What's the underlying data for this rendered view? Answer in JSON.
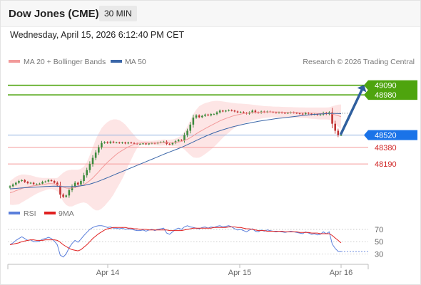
{
  "header": {
    "title": "Dow Jones (CME)",
    "interval": "30 MIN",
    "datetime": "Wednesday, April 15, 2026 6:12:40 PM CET"
  },
  "legend": {
    "bollinger_label": "MA 20 + Bollinger Bands",
    "ma50_label": "MA 50",
    "credit": "Research © 2026 Trading Central",
    "rsi_label": "RSI",
    "ma9_label": "9MA"
  },
  "colors": {
    "candle_up": "#3d8b3d",
    "candle_down": "#c03030",
    "bollinger_fill": "#fde1e1",
    "ma20": "#f29a9a",
    "ma50": "#3a66a8",
    "resistance": "#4ea40e",
    "support": "#f59a9a",
    "pivot": "#1a73e8",
    "rsi": "#5b7fdb",
    "rsi_ma": "#e02020",
    "arrow": "#2f5f9e"
  },
  "chart_data": [
    {
      "type": "candlestick",
      "x_ticks": [
        "Apr 14",
        "Apr 15",
        "Apr 16"
      ],
      "y_range": [
        47800,
        49250
      ],
      "levels": [
        {
          "value": 49090,
          "label": "49090",
          "kind": "resistance"
        },
        {
          "value": 48980,
          "label": "48980",
          "kind": "resistance"
        },
        {
          "value": 48520,
          "label": "48520",
          "kind": "pivot"
        },
        {
          "value": 48380,
          "label": "48380",
          "kind": "support"
        },
        {
          "value": 48190,
          "label": "48190",
          "kind": "support"
        }
      ],
      "close": [
        47935,
        47955,
        47975,
        47995,
        48005,
        47985,
        47970,
        47975,
        47960,
        47960,
        47965,
        47985,
        47990,
        48005,
        47995,
        47975,
        47945,
        47840,
        47815,
        47830,
        47890,
        47935,
        47975,
        47955,
        47995,
        48060,
        48120,
        48190,
        48260,
        48320,
        48380,
        48430,
        48440,
        48430,
        48445,
        48435,
        48435,
        48430,
        48435,
        48425,
        48435,
        48430,
        48425,
        48420,
        48420,
        48425,
        48415,
        48425,
        48430,
        48425,
        48435,
        48440,
        48445,
        48420,
        48415,
        48430,
        48450,
        48465,
        48460,
        48520,
        48570,
        48640,
        48720,
        48745,
        48725,
        48740,
        48755,
        48745,
        48760,
        48760,
        48780,
        48800,
        48790,
        48800,
        48805,
        48800,
        48790,
        48780,
        48785,
        48775,
        48765,
        48780,
        48800,
        48780,
        48775,
        48790,
        48780,
        48790,
        48785,
        48780,
        48775,
        48780,
        48775,
        48770,
        48775,
        48780,
        48775,
        48770,
        48765,
        48760,
        48775,
        48765,
        48755,
        48760,
        48750,
        48755,
        48775,
        48760,
        48780,
        48650,
        48570,
        48520,
        48520
      ],
      "ma20": [
        47860,
        47870,
        47885,
        47895,
        47910,
        47920,
        47928,
        47935,
        47940,
        47945,
        47950,
        47955,
        47960,
        47965,
        47965,
        47962,
        47955,
        47940,
        47925,
        47915,
        47912,
        47915,
        47922,
        47930,
        47940,
        47955,
        47975,
        48000,
        48030,
        48065,
        48100,
        48140,
        48175,
        48210,
        48240,
        48270,
        48300,
        48325,
        48345,
        48365,
        48385,
        48400,
        48415,
        48425,
        48430,
        48432,
        48432,
        48430,
        48430,
        48430,
        48430,
        48432,
        48435,
        48434,
        48432,
        48432,
        48436,
        48442,
        48448,
        48458,
        48472,
        48490,
        48512,
        48535,
        48556,
        48575,
        48594,
        48612,
        48630,
        48648,
        48665,
        48682,
        48697,
        48710,
        48722,
        48734,
        48744,
        48752,
        48760,
        48766,
        48770,
        48774,
        48778,
        48780,
        48781,
        48782,
        48783,
        48784,
        48785,
        48785,
        48784,
        48783,
        48782,
        48781,
        48780,
        48780,
        48779,
        48778,
        48777,
        48776,
        48775,
        48773,
        48771,
        48770,
        48768,
        48767,
        48767,
        48767,
        48767,
        48762,
        48752,
        48742,
        48730
      ],
      "bb_upper": [
        47995,
        48020,
        48045,
        48060,
        48070,
        48070,
        48065,
        48060,
        48050,
        48040,
        48035,
        48030,
        48030,
        48030,
        48028,
        48028,
        48030,
        48060,
        48090,
        48110,
        48120,
        48125,
        48125,
        48125,
        48135,
        48160,
        48210,
        48290,
        48380,
        48470,
        48540,
        48600,
        48640,
        48670,
        48690,
        48700,
        48700,
        48690,
        48670,
        48640,
        48600,
        48560,
        48520,
        48480,
        48460,
        48455,
        48455,
        48455,
        48455,
        48457,
        48460,
        48465,
        48470,
        48468,
        48468,
        48470,
        48480,
        48495,
        48515,
        48560,
        48620,
        48690,
        48760,
        48810,
        48850,
        48870,
        48885,
        48895,
        48905,
        48910,
        48912,
        48910,
        48905,
        48900,
        48895,
        48890,
        48885,
        48882,
        48880,
        48878,
        48875,
        48872,
        48868,
        48864,
        48860,
        48856,
        48852,
        48850,
        48848,
        48846,
        48845,
        48844,
        48843,
        48842,
        48841,
        48840,
        48839,
        48838,
        48837,
        48836,
        48835,
        48835,
        48835,
        48835,
        48835,
        48835,
        48835,
        48835,
        48838,
        48850,
        48860,
        48868,
        48870
      ],
      "bb_lower": [
        47725,
        47720,
        47725,
        47730,
        47750,
        47770,
        47790,
        47810,
        47830,
        47850,
        47865,
        47880,
        47890,
        47900,
        47902,
        47896,
        47880,
        47820,
        47760,
        47720,
        47704,
        47705,
        47719,
        47735,
        47745,
        47750,
        47740,
        47710,
        47680,
        47660,
        47660,
        47680,
        47710,
        47750,
        47790,
        47840,
        47900,
        47960,
        48020,
        48090,
        48170,
        48240,
        48310,
        48370,
        48400,
        48409,
        48409,
        48405,
        48405,
        48403,
        48400,
        48399,
        48400,
        48400,
        48396,
        48394,
        48392,
        48389,
        48381,
        48356,
        48324,
        48290,
        48264,
        48260,
        48262,
        48280,
        48303,
        48329,
        48355,
        48386,
        48418,
        48454,
        48489,
        48520,
        48549,
        48578,
        48603,
        48622,
        48640,
        48654,
        48665,
        48676,
        48688,
        48696,
        48702,
        48708,
        48714,
        48718,
        48722,
        48724,
        48723,
        48722,
        48721,
        48720,
        48719,
        48720,
        48719,
        48718,
        48717,
        48716,
        48715,
        48711,
        48707,
        48705,
        48701,
        48699,
        48699,
        48699,
        48696,
        48674,
        48644,
        48616,
        48590
      ],
      "ma50": [
        47905,
        47908,
        47910,
        47913,
        47916,
        47918,
        47920,
        47922,
        47924,
        47926,
        47928,
        47930,
        47932,
        47934,
        47935,
        47936,
        47935,
        47933,
        47931,
        47930,
        47930,
        47931,
        47933,
        47936,
        47940,
        47945,
        47952,
        47960,
        47970,
        47981,
        47993,
        48006,
        48020,
        48034,
        48048,
        48062,
        48076,
        48090,
        48104,
        48118,
        48132,
        48146,
        48160,
        48174,
        48188,
        48202,
        48216,
        48230,
        48244,
        48258,
        48272,
        48286,
        48300,
        48314,
        48327,
        48340,
        48353,
        48366,
        48380,
        48394,
        48410,
        48426,
        48442,
        48458,
        48474,
        48490,
        48505,
        48519,
        48533,
        48546,
        48558,
        48570,
        48581,
        48591,
        48601,
        48611,
        48620,
        48628,
        48636,
        48644,
        48651,
        48658,
        48665,
        48671,
        48677,
        48683,
        48688,
        48693,
        48698,
        48703,
        48708,
        48712,
        48716,
        48720,
        48724,
        48728,
        48732,
        48736,
        48740,
        48744,
        48748,
        48751,
        48754,
        48757,
        48760,
        48762,
        48764,
        48766,
        48768,
        48768,
        48767,
        48766,
        48765
      ]
    },
    {
      "type": "line",
      "name": "RSI",
      "y_ticks": [
        30,
        50,
        70
      ],
      "y_range": [
        20,
        85
      ],
      "rsi": [
        45,
        48,
        52,
        55,
        58,
        55,
        52,
        53,
        50,
        50,
        51,
        54,
        55,
        57,
        55,
        51,
        45,
        28,
        25,
        30,
        40,
        47,
        52,
        49,
        54,
        60,
        65,
        70,
        73,
        75,
        76,
        76,
        75,
        73,
        74,
        72,
        72,
        71,
        72,
        70,
        71,
        70,
        69,
        68,
        68,
        69,
        67,
        69,
        70,
        68,
        70,
        71,
        72,
        64,
        62,
        66,
        70,
        72,
        70,
        74,
        76,
        74,
        73,
        72,
        71,
        73,
        74,
        72,
        74,
        73,
        75,
        76,
        74,
        75,
        76,
        74,
        71,
        69,
        70,
        68,
        66,
        69,
        71,
        67,
        66,
        69,
        67,
        69,
        68,
        67,
        66,
        67,
        66,
        65,
        66,
        67,
        66,
        65,
        64,
        63,
        66,
        64,
        62,
        63,
        61,
        62,
        66,
        63,
        66,
        46,
        39,
        34,
        34
      ],
      "rsi_ma": [
        45,
        46,
        47,
        48,
        50,
        51,
        52,
        53,
        53,
        52,
        52,
        52,
        53,
        53,
        53,
        53,
        52,
        49,
        45,
        42,
        39,
        37,
        36,
        35,
        37,
        41,
        45,
        50,
        55,
        59,
        63,
        66,
        69,
        71,
        72,
        73,
        73,
        73,
        73,
        73,
        72,
        72,
        71,
        71,
        70,
        70,
        70,
        69,
        69,
        69,
        69,
        69,
        69,
        69,
        68,
        68,
        68,
        68,
        68,
        69,
        70,
        71,
        72,
        72,
        72,
        72,
        72,
        72,
        72,
        73,
        73,
        73,
        73,
        73,
        74,
        74,
        74,
        73,
        73,
        72,
        71,
        71,
        70,
        69,
        68,
        68,
        68,
        67,
        67,
        67,
        67,
        67,
        67,
        66,
        66,
        66,
        66,
        66,
        65,
        65,
        65,
        65,
        64,
        64,
        64,
        63,
        63,
        63,
        63,
        60,
        56,
        52,
        48
      ]
    }
  ]
}
